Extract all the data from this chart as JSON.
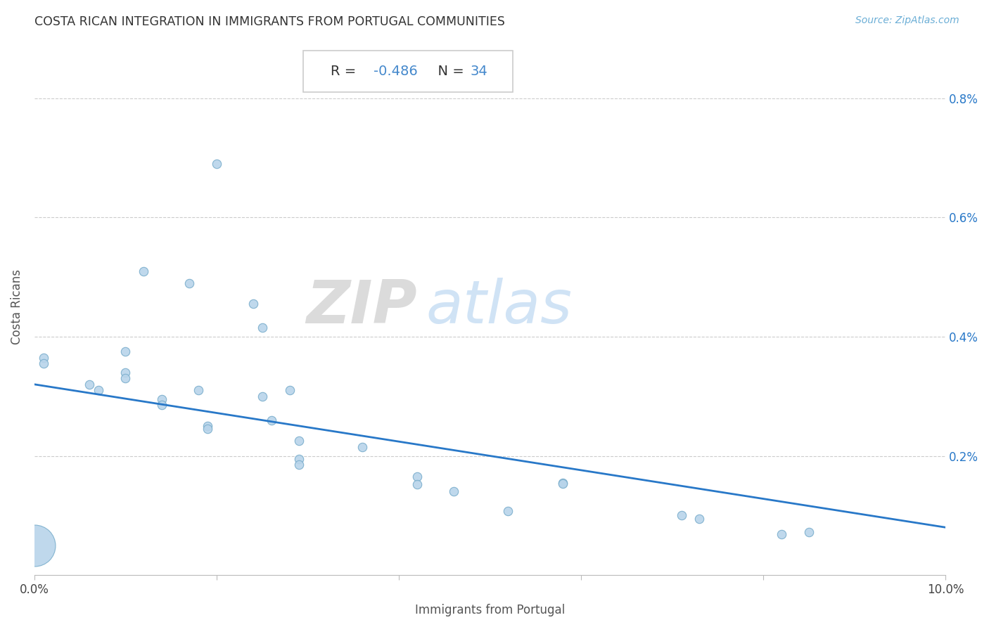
{
  "title": "COSTA RICAN INTEGRATION IN IMMIGRANTS FROM PORTUGAL COMMUNITIES",
  "source": "Source: ZipAtlas.com",
  "xlabel": "Immigrants from Portugal",
  "ylabel": "Costa Ricans",
  "R": -0.486,
  "N": 34,
  "xlim": [
    0.0,
    0.1
  ],
  "ylim": [
    0.0,
    0.009
  ],
  "xticks": [
    0.0,
    0.02,
    0.04,
    0.06,
    0.08,
    0.1
  ],
  "xtick_labels": [
    "0.0%",
    "",
    "",
    "",
    "",
    "10.0%"
  ],
  "yticks": [
    0.0,
    0.002,
    0.004,
    0.006,
    0.008
  ],
  "ytick_labels": [
    "",
    "0.2%",
    "0.4%",
    "0.6%",
    "0.8%"
  ],
  "scatter_color": "#b8d4ea",
  "scatter_edge_color": "#7aaecc",
  "line_color": "#2878c8",
  "points": [
    [
      0.001,
      0.00365
    ],
    [
      0.001,
      0.00355
    ],
    [
      0.006,
      0.0032
    ],
    [
      0.007,
      0.0031
    ],
    [
      0.01,
      0.0034
    ],
    [
      0.01,
      0.0033
    ],
    [
      0.01,
      0.00375
    ],
    [
      0.012,
      0.0051
    ],
    [
      0.014,
      0.00295
    ],
    [
      0.014,
      0.00285
    ],
    [
      0.017,
      0.0049
    ],
    [
      0.018,
      0.0031
    ],
    [
      0.019,
      0.0025
    ],
    [
      0.019,
      0.00245
    ],
    [
      0.02,
      0.0069
    ],
    [
      0.024,
      0.00455
    ],
    [
      0.025,
      0.00415
    ],
    [
      0.025,
      0.003
    ],
    [
      0.026,
      0.0026
    ],
    [
      0.028,
      0.0031
    ],
    [
      0.029,
      0.00225
    ],
    [
      0.029,
      0.00195
    ],
    [
      0.029,
      0.00185
    ],
    [
      0.036,
      0.00215
    ],
    [
      0.042,
      0.00165
    ],
    [
      0.042,
      0.00152
    ],
    [
      0.046,
      0.0014
    ],
    [
      0.052,
      0.00108
    ],
    [
      0.058,
      0.00155
    ],
    [
      0.058,
      0.00153
    ],
    [
      0.071,
      0.001
    ],
    [
      0.073,
      0.00095
    ],
    [
      0.082,
      0.00068
    ],
    [
      0.085,
      0.00072
    ],
    [
      0.0,
      0.0005
    ]
  ],
  "sizes": [
    80,
    80,
    80,
    80,
    80,
    80,
    80,
    80,
    80,
    80,
    80,
    80,
    80,
    80,
    80,
    80,
    80,
    80,
    80,
    80,
    80,
    80,
    80,
    80,
    80,
    80,
    80,
    80,
    80,
    80,
    80,
    80,
    80,
    80,
    1800
  ],
  "watermark_zip": "ZIP",
  "watermark_atlas": "atlas",
  "background_color": "#ffffff",
  "grid_color": "#cccccc",
  "line_start_y": 0.0032,
  "line_end_y": 0.0008
}
